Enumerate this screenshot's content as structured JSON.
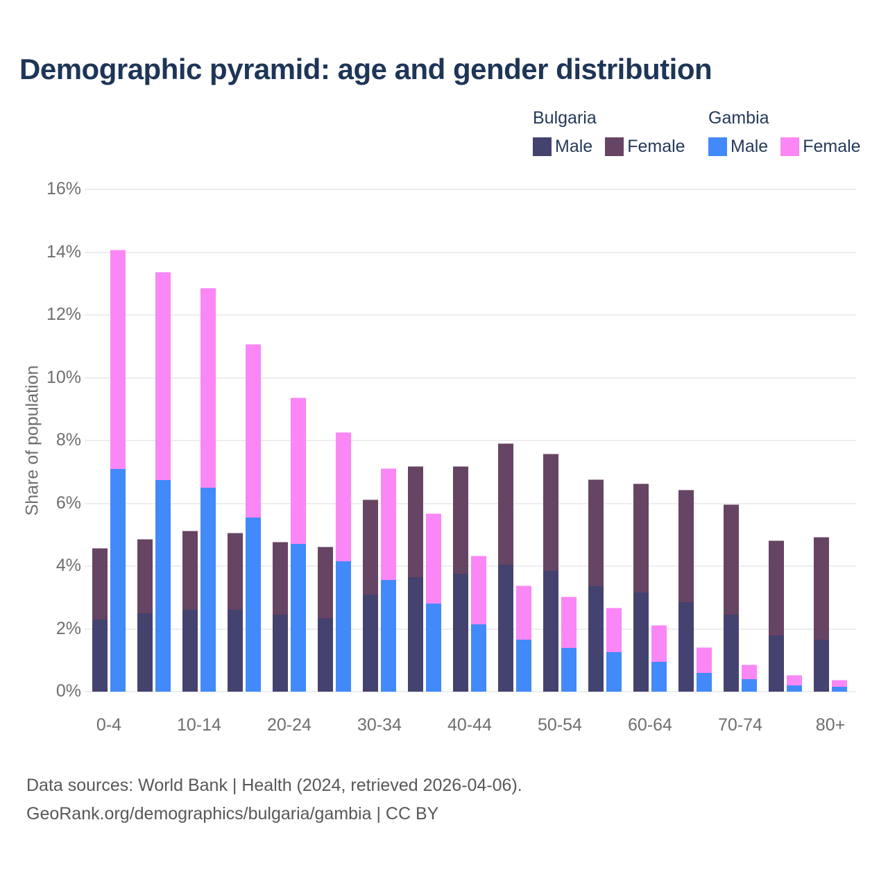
{
  "title": "Demographic pyramid: age and gender distribution",
  "legend": {
    "groups": [
      {
        "name": "Bulgaria",
        "entries": [
          {
            "label": "Male",
            "color": "#44426e"
          },
          {
            "label": "Female",
            "color": "#664463"
          }
        ]
      },
      {
        "name": "Gambia",
        "entries": [
          {
            "label": "Male",
            "color": "#4289fa"
          },
          {
            "label": "Female",
            "color": "#fa87f5"
          }
        ]
      }
    ]
  },
  "chart_data": {
    "type": "bar",
    "bar_mode": "grouped-stacked",
    "title": "Demographic pyramid: age and gender distribution",
    "xlabel": "",
    "ylabel": "Share of population",
    "ylim": [
      0,
      16
    ],
    "ytick_labels": [
      "0%",
      "2%",
      "4%",
      "6%",
      "8%",
      "10%",
      "12%",
      "14%",
      "16%"
    ],
    "grid": "horizontal",
    "legend_position": "top-right",
    "categories": [
      "0-4",
      "5-9",
      "10-14",
      "15-19",
      "20-24",
      "25-29",
      "30-34",
      "35-39",
      "40-44",
      "45-49",
      "50-54",
      "55-59",
      "60-64",
      "65-69",
      "70-74",
      "75-79",
      "80+"
    ],
    "xtick_labels_shown": [
      "0-4",
      "10-14",
      "20-24",
      "30-34",
      "40-44",
      "50-54",
      "60-64",
      "70-74",
      "80+"
    ],
    "series": [
      {
        "name": "Bulgaria Male",
        "country": "Bulgaria",
        "gender": "Male",
        "color": "#44426e",
        "stack": "bulgaria",
        "values": [
          2.3,
          2.5,
          2.6,
          2.6,
          2.45,
          2.35,
          3.1,
          3.65,
          3.75,
          4.05,
          3.85,
          3.35,
          3.15,
          2.85,
          2.45,
          1.8,
          1.65
        ]
      },
      {
        "name": "Bulgaria Female",
        "country": "Bulgaria",
        "gender": "Female",
        "color": "#664463",
        "stack": "bulgaria",
        "values": [
          2.25,
          2.35,
          2.5,
          2.45,
          2.3,
          2.25,
          3.0,
          3.5,
          3.4,
          3.85,
          3.7,
          3.4,
          3.45,
          3.55,
          3.5,
          3.0,
          3.25
        ]
      },
      {
        "name": "Gambia Male",
        "country": "Gambia",
        "gender": "Male",
        "color": "#4289fa",
        "stack": "gambia",
        "values": [
          7.1,
          6.75,
          6.5,
          5.55,
          4.7,
          4.15,
          3.55,
          2.8,
          2.15,
          1.65,
          1.4,
          1.25,
          0.95,
          0.6,
          0.4,
          0.2,
          0.15
        ]
      },
      {
        "name": "Gambia Female",
        "country": "Gambia",
        "gender": "Female",
        "color": "#fa87f5",
        "stack": "gambia",
        "values": [
          6.95,
          6.6,
          6.35,
          5.5,
          4.65,
          4.1,
          3.55,
          2.85,
          2.15,
          1.7,
          1.6,
          1.4,
          1.15,
          0.8,
          0.45,
          0.3,
          0.2
        ]
      }
    ]
  },
  "footer": {
    "line1": "Data sources: World Bank | Health (2024, retrieved 2026-04-06).",
    "line2": "GeoRank.org/demographics/bulgaria/gambia | CC BY"
  },
  "colors": {
    "title_text": "#1d3557",
    "legend_text": "#24395b",
    "axis_text": "#6e6e6e",
    "footer_text": "#575757",
    "gridline": "#ededf1",
    "background": "#ffffff",
    "bulgaria_male": "#44426e",
    "bulgaria_female": "#664463",
    "gambia_male": "#4289fa",
    "gambia_female": "#fa87f5"
  }
}
